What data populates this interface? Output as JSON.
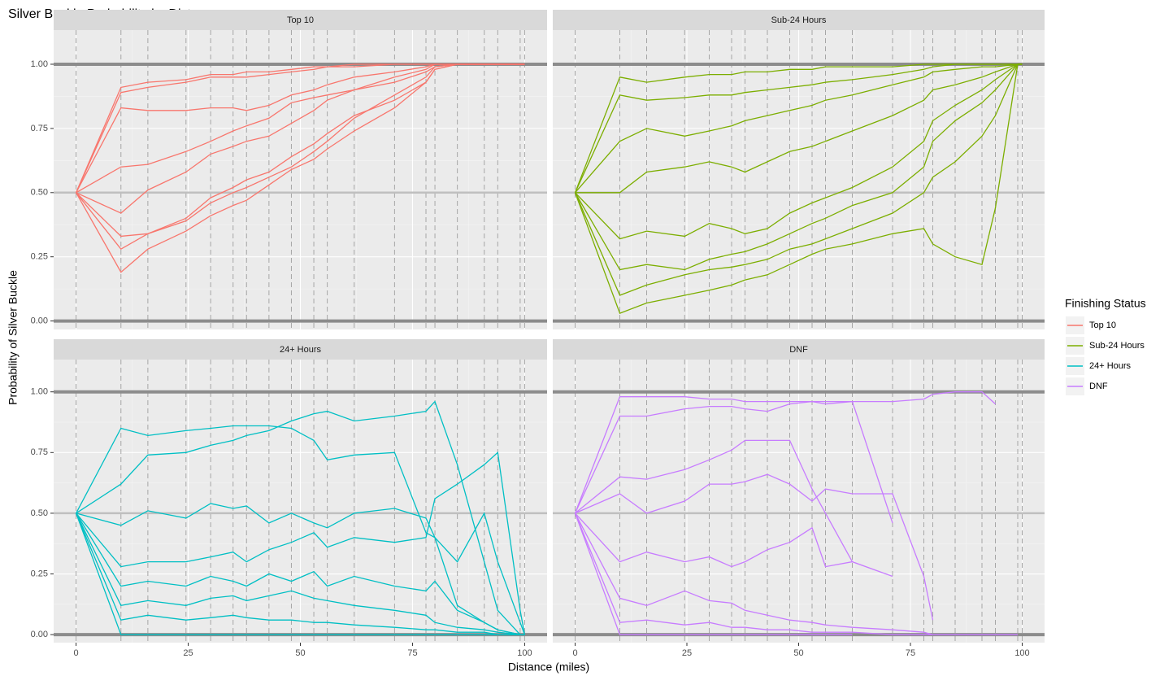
{
  "title": "Silver Buckle Probability by Distance",
  "xlabel": "Distance (miles)",
  "ylabel": "Probability of Silver Buckle",
  "legend_title": "Finishing Status",
  "chart_data": [
    {
      "type": "line",
      "title": "Top 10",
      "color": "#f8766d",
      "xlim": [
        -5,
        105
      ],
      "ylim": [
        -0.033,
        1.133
      ],
      "xticks": [
        0,
        25,
        50,
        75,
        100
      ],
      "yticks": [
        {
          "value": 0,
          "label": "0.00"
        },
        {
          "value": 0.25,
          "label": "0.25"
        },
        {
          "value": 0.5,
          "label": "0.50"
        },
        {
          "value": 0.75,
          "label": "0.75"
        },
        {
          "value": 1,
          "label": "1.00"
        }
      ],
      "hlines": [
        0,
        0.5,
        1
      ],
      "x": [
        0,
        10,
        16,
        24.5,
        30,
        35,
        38,
        43,
        48,
        53,
        56,
        62,
        71,
        78,
        80,
        85,
        91,
        94,
        99,
        100
      ],
      "series": [
        {
          "values": [
            0.5,
            0.91,
            0.93,
            0.94,
            0.96,
            0.96,
            0.97,
            0.97,
            0.98,
            0.99,
            0.99,
            1,
            1,
            1,
            1,
            1,
            1,
            1,
            1,
            1
          ]
        },
        {
          "values": [
            0.5,
            0.89,
            0.91,
            0.93,
            0.95,
            0.95,
            0.95,
            0.96,
            0.97,
            0.98,
            0.99,
            0.99,
            1,
            1,
            1,
            1,
            1,
            1,
            1,
            1
          ]
        },
        {
          "values": [
            0.5,
            0.83,
            0.82,
            0.82,
            0.83,
            0.83,
            0.82,
            0.84,
            0.88,
            0.9,
            0.92,
            0.95,
            0.97,
            0.99,
            1,
            1,
            1,
            1,
            1,
            1
          ]
        },
        {
          "values": [
            0.5,
            0.6,
            0.61,
            0.66,
            0.7,
            0.74,
            0.76,
            0.79,
            0.85,
            0.87,
            0.88,
            0.9,
            0.95,
            0.98,
            1,
            1,
            1,
            1,
            1,
            1
          ]
        },
        {
          "values": [
            0.5,
            0.42,
            0.51,
            0.58,
            0.65,
            0.68,
            0.7,
            0.72,
            0.77,
            0.82,
            0.86,
            0.9,
            0.93,
            0.97,
            0.99,
            1,
            1,
            1,
            1,
            1
          ]
        },
        {
          "values": [
            0.5,
            0.33,
            0.34,
            0.39,
            0.46,
            0.5,
            0.52,
            0.56,
            0.6,
            0.66,
            0.7,
            0.79,
            0.88,
            0.95,
            0.99,
            1,
            1,
            1,
            1,
            1
          ]
        },
        {
          "values": [
            0.5,
            0.28,
            0.34,
            0.4,
            0.48,
            0.52,
            0.55,
            0.58,
            0.64,
            0.69,
            0.73,
            0.8,
            0.86,
            0.93,
            0.98,
            1,
            1,
            1,
            1,
            1
          ]
        },
        {
          "values": [
            0.5,
            0.19,
            0.28,
            0.35,
            0.41,
            0.45,
            0.47,
            0.53,
            0.59,
            0.63,
            0.67,
            0.74,
            0.83,
            0.93,
            0.98,
            1,
            1,
            1,
            1,
            1
          ]
        }
      ]
    },
    {
      "type": "line",
      "title": "Sub-24 Hours",
      "color": "#7cae00",
      "xlim": [
        -5,
        105
      ],
      "ylim": [
        -0.033,
        1.133
      ],
      "xticks": [
        0,
        25,
        50,
        75,
        100
      ],
      "yticks": [
        {
          "value": 0,
          "label": "0.00"
        },
        {
          "value": 0.25,
          "label": "0.25"
        },
        {
          "value": 0.5,
          "label": "0.50"
        },
        {
          "value": 0.75,
          "label": "0.75"
        },
        {
          "value": 1,
          "label": "1.00"
        }
      ],
      "hlines": [
        0,
        0.5,
        1
      ],
      "x": [
        0,
        10,
        16,
        24.5,
        30,
        35,
        38,
        43,
        48,
        53,
        56,
        62,
        71,
        78,
        80,
        85,
        91,
        94,
        99,
        100
      ],
      "series": [
        {
          "values": [
            0.5,
            0.95,
            0.93,
            0.95,
            0.96,
            0.96,
            0.97,
            0.97,
            0.98,
            0.98,
            0.99,
            0.99,
            0.99,
            1,
            1,
            1,
            1,
            1,
            1,
            1
          ]
        },
        {
          "values": [
            0.5,
            0.88,
            0.86,
            0.87,
            0.88,
            0.88,
            0.89,
            0.9,
            0.91,
            0.92,
            0.93,
            0.94,
            0.96,
            0.98,
            0.99,
            1,
            1,
            1,
            1,
            1
          ]
        },
        {
          "values": [
            0.5,
            0.7,
            0.75,
            0.72,
            0.74,
            0.76,
            0.78,
            0.8,
            0.82,
            0.84,
            0.86,
            0.88,
            0.92,
            0.95,
            0.97,
            0.98,
            0.99,
            0.99,
            1,
            1
          ]
        },
        {
          "values": [
            0.5,
            0.5,
            0.58,
            0.6,
            0.62,
            0.6,
            0.58,
            0.62,
            0.66,
            0.68,
            0.7,
            0.74,
            0.8,
            0.86,
            0.9,
            0.92,
            0.95,
            0.97,
            1,
            1
          ]
        },
        {
          "values": [
            0.5,
            0.32,
            0.35,
            0.33,
            0.38,
            0.36,
            0.34,
            0.36,
            0.42,
            0.46,
            0.48,
            0.52,
            0.6,
            0.7,
            0.78,
            0.84,
            0.9,
            0.94,
            1,
            1
          ]
        },
        {
          "values": [
            0.5,
            0.2,
            0.22,
            0.2,
            0.24,
            0.26,
            0.27,
            0.3,
            0.34,
            0.38,
            0.4,
            0.45,
            0.5,
            0.6,
            0.7,
            0.78,
            0.85,
            0.9,
            1,
            1
          ]
        },
        {
          "values": [
            0.5,
            0.1,
            0.14,
            0.18,
            0.2,
            0.21,
            0.22,
            0.24,
            0.28,
            0.3,
            0.32,
            0.36,
            0.42,
            0.5,
            0.56,
            0.62,
            0.72,
            0.8,
            1,
            1
          ]
        },
        {
          "values": [
            0.5,
            0.03,
            0.07,
            0.1,
            0.12,
            0.14,
            0.16,
            0.18,
            0.22,
            0.26,
            0.28,
            0.3,
            0.34,
            0.36,
            0.3,
            0.25,
            0.22,
            0.44,
            1,
            1
          ]
        }
      ]
    },
    {
      "type": "line",
      "title": "24+ Hours",
      "color": "#00bfc4",
      "xlim": [
        -5,
        105
      ],
      "ylim": [
        -0.033,
        1.133
      ],
      "xticks": [
        0,
        25,
        50,
        75,
        100
      ],
      "yticks": [
        {
          "value": 0,
          "label": "0.00"
        },
        {
          "value": 0.25,
          "label": "0.25"
        },
        {
          "value": 0.5,
          "label": "0.50"
        },
        {
          "value": 0.75,
          "label": "0.75"
        },
        {
          "value": 1,
          "label": "1.00"
        }
      ],
      "hlines": [
        0,
        0.5,
        1
      ],
      "x": [
        0,
        10,
        16,
        24.5,
        30,
        35,
        38,
        43,
        48,
        53,
        56,
        62,
        71,
        78,
        80,
        85,
        91,
        94,
        99,
        100
      ],
      "series": [
        {
          "values": [
            0.5,
            0.85,
            0.82,
            0.84,
            0.85,
            0.86,
            0.86,
            0.86,
            0.85,
            0.8,
            0.72,
            0.74,
            0.75,
            0.42,
            0.4,
            0.12,
            0.05,
            0.02,
            0,
            0
          ]
        },
        {
          "values": [
            0.5,
            0.62,
            0.74,
            0.75,
            0.78,
            0.8,
            0.82,
            0.84,
            0.88,
            0.91,
            0.92,
            0.88,
            0.9,
            0.92,
            0.96,
            0.7,
            0.3,
            0.1,
            0,
            0
          ]
        },
        {
          "values": [
            0.5,
            0.45,
            0.51,
            0.48,
            0.54,
            0.52,
            0.53,
            0.46,
            0.5,
            0.46,
            0.44,
            0.5,
            0.52,
            0.48,
            0.4,
            0.3,
            0.5,
            0.3,
            0.05,
            0
          ]
        },
        {
          "values": [
            0.5,
            0.28,
            0.3,
            0.3,
            0.32,
            0.34,
            0.3,
            0.35,
            0.38,
            0.42,
            0.36,
            0.4,
            0.38,
            0.4,
            0.56,
            0.62,
            0.7,
            0.75,
            0.1,
            0
          ]
        },
        {
          "values": [
            0.5,
            0.2,
            0.22,
            0.2,
            0.24,
            0.22,
            0.2,
            0.25,
            0.22,
            0.26,
            0.2,
            0.24,
            0.2,
            0.18,
            0.22,
            0.1,
            0.05,
            0.02,
            0,
            0
          ]
        },
        {
          "values": [
            0.5,
            0.12,
            0.14,
            0.12,
            0.15,
            0.16,
            0.14,
            0.16,
            0.18,
            0.15,
            0.14,
            0.12,
            0.1,
            0.08,
            0.05,
            0.03,
            0.02,
            0.01,
            0,
            0
          ]
        },
        {
          "values": [
            0.5,
            0.06,
            0.08,
            0.06,
            0.07,
            0.08,
            0.07,
            0.06,
            0.06,
            0.05,
            0.05,
            0.04,
            0.03,
            0.02,
            0.02,
            0.01,
            0.01,
            0,
            0,
            0
          ]
        },
        {
          "values": [
            0.5,
            0,
            0,
            0,
            0,
            0,
            0,
            0,
            0,
            0,
            0,
            0,
            0,
            0,
            0,
            0,
            0,
            0,
            0,
            0
          ]
        }
      ]
    },
    {
      "type": "line",
      "title": "DNF",
      "color": "#c77cff",
      "xlim": [
        -5,
        105
      ],
      "ylim": [
        -0.033,
        1.133
      ],
      "xticks": [
        0,
        25,
        50,
        75,
        100
      ],
      "yticks": [
        {
          "value": 0,
          "label": "0.00"
        },
        {
          "value": 0.25,
          "label": "0.25"
        },
        {
          "value": 0.5,
          "label": "0.50"
        },
        {
          "value": 0.75,
          "label": "0.75"
        },
        {
          "value": 1,
          "label": "1.00"
        }
      ],
      "hlines": [
        0,
        0.5,
        1
      ],
      "x": [
        0,
        10,
        16,
        24.5,
        30,
        35,
        38,
        43,
        48,
        53,
        56,
        62,
        71,
        78,
        80,
        85,
        91,
        94,
        99,
        100
      ],
      "series": [
        {
          "values": [
            0.5,
            0.98,
            0.98,
            0.98,
            0.97,
            0.97,
            0.96,
            0.96,
            0.96,
            0.96,
            0.96,
            0.96,
            0.96,
            0.97,
            0.99,
            1,
            1,
            0.95,
            null,
            null
          ]
        },
        {
          "values": [
            0.5,
            0.9,
            0.9,
            0.93,
            0.94,
            0.94,
            0.93,
            0.92,
            0.95,
            0.96,
            0.95,
            0.96,
            0.46,
            null,
            null,
            null,
            null,
            null,
            null,
            null
          ]
        },
        {
          "values": [
            0.5,
            0.65,
            0.64,
            0.68,
            0.72,
            0.76,
            0.8,
            0.8,
            0.8,
            0.6,
            0.5,
            0.3,
            null,
            null,
            null,
            null,
            null,
            null,
            null,
            null
          ]
        },
        {
          "values": [
            0.5,
            0.58,
            0.5,
            0.55,
            0.62,
            0.62,
            0.63,
            0.66,
            0.62,
            0.55,
            0.6,
            0.58,
            0.58,
            0.24,
            0.06,
            null,
            null,
            null,
            null,
            null
          ]
        },
        {
          "values": [
            0.5,
            0.3,
            0.34,
            0.3,
            0.32,
            0.28,
            0.3,
            0.35,
            0.38,
            0.44,
            0.28,
            0.3,
            0.24,
            null,
            null,
            null,
            null,
            null,
            null,
            null
          ]
        },
        {
          "values": [
            0.5,
            0.15,
            0.12,
            0.18,
            0.14,
            0.13,
            0.1,
            0.08,
            0.06,
            0.05,
            0.04,
            0.03,
            0.02,
            0.01,
            0,
            null,
            null,
            null,
            null,
            null
          ]
        },
        {
          "values": [
            0.5,
            0.05,
            0.06,
            0.04,
            0.05,
            0.03,
            0.03,
            0.02,
            0.02,
            0.01,
            0.01,
            0.01,
            0,
            0,
            0,
            0,
            0,
            0,
            0,
            null
          ]
        },
        {
          "values": [
            0.5,
            0,
            0,
            0,
            0,
            0,
            0,
            0,
            0,
            0,
            0,
            0,
            null,
            null,
            null,
            null,
            null,
            null,
            null,
            null
          ]
        }
      ]
    }
  ]
}
